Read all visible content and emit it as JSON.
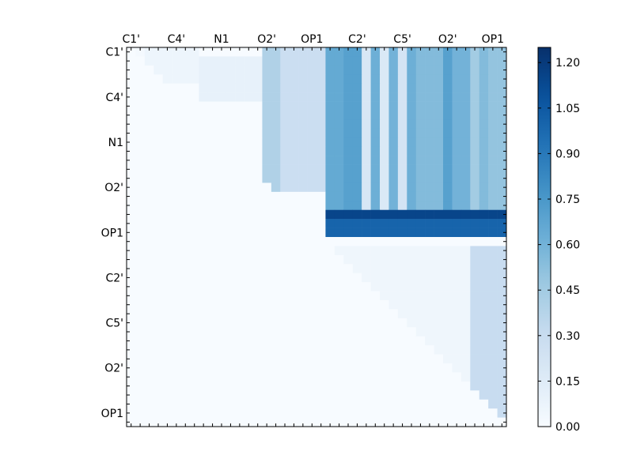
{
  "chart_data": {
    "type": "heatmap",
    "title": "",
    "xlabel": "",
    "ylabel": "",
    "colormap": "Blues",
    "colorscale": {
      "min": 0.0,
      "max": 1.25
    },
    "colorbar_ticks": [
      "0.00",
      "0.15",
      "0.30",
      "0.45",
      "0.60",
      "0.75",
      "0.90",
      "1.05",
      "1.20"
    ],
    "colorbar_tick_values": [
      0.0,
      0.15,
      0.3,
      0.45,
      0.6,
      0.75,
      0.9,
      1.05,
      1.2
    ],
    "x_tick_labels": [
      "C1'",
      "C4'",
      "N1",
      "O2'",
      "OP1",
      "C2'",
      "C5'",
      "O2'",
      "OP1"
    ],
    "y_tick_labels": [
      "C1'",
      "C4'",
      "N1",
      "O2'",
      "OP1",
      "C2'",
      "C5'",
      "O2'",
      "OP1"
    ],
    "grid_size": 42,
    "label_spacing": 5,
    "blocks": [
      {
        "rows": [
          0,
          4
        ],
        "cols": [
          0,
          3
        ],
        "value": 0.02
      },
      {
        "rows": [
          0,
          4
        ],
        "cols": [
          2,
          8
        ],
        "value": 0.06
      },
      {
        "rows": [
          1,
          6
        ],
        "cols": [
          8,
          15
        ],
        "value": 0.1
      },
      {
        "rows": [
          0,
          16
        ],
        "cols": [
          15,
          17
        ],
        "value": 0.4
      },
      {
        "rows": [
          0,
          16
        ],
        "cols": [
          17,
          22
        ],
        "value": 0.28
      },
      {
        "rows": [
          0,
          21
        ],
        "cols": [
          22,
          24
        ],
        "value": 0.65
      },
      {
        "rows": [
          0,
          21
        ],
        "cols": [
          24,
          26
        ],
        "value": 0.7
      },
      {
        "rows": [
          0,
          21
        ],
        "cols": [
          26,
          27
        ],
        "value": 0.2
      },
      {
        "rows": [
          0,
          21
        ],
        "cols": [
          27,
          28
        ],
        "value": 0.62
      },
      {
        "rows": [
          0,
          21
        ],
        "cols": [
          28,
          29
        ],
        "value": 0.18
      },
      {
        "rows": [
          0,
          21
        ],
        "cols": [
          29,
          30
        ],
        "value": 0.6
      },
      {
        "rows": [
          0,
          21
        ],
        "cols": [
          30,
          31
        ],
        "value": 0.22
      },
      {
        "rows": [
          0,
          21
        ],
        "cols": [
          31,
          32
        ],
        "value": 0.62
      },
      {
        "rows": [
          0,
          21
        ],
        "cols": [
          32,
          35
        ],
        "value": 0.55
      },
      {
        "rows": [
          0,
          21
        ],
        "cols": [
          35,
          36
        ],
        "value": 0.7
      },
      {
        "rows": [
          0,
          21
        ],
        "cols": [
          36,
          38
        ],
        "value": 0.6
      },
      {
        "rows": [
          0,
          21
        ],
        "cols": [
          38,
          39
        ],
        "value": 0.45
      },
      {
        "rows": [
          0,
          21
        ],
        "cols": [
          39,
          40
        ],
        "value": 0.55
      },
      {
        "rows": [
          0,
          21
        ],
        "cols": [
          40,
          42
        ],
        "value": 0.5
      },
      {
        "rows": [
          18,
          21
        ],
        "cols": [
          22,
          42
        ],
        "value": 1.0
      },
      {
        "rows": [
          18,
          19
        ],
        "cols": [
          22,
          42
        ],
        "value": 1.15
      },
      {
        "rows": [
          22,
          42
        ],
        "cols": [
          38,
          42
        ],
        "value": 0.3
      },
      {
        "rows": [
          22,
          42
        ],
        "cols": [
          22,
          38
        ],
        "value": 0.05
      }
    ]
  }
}
